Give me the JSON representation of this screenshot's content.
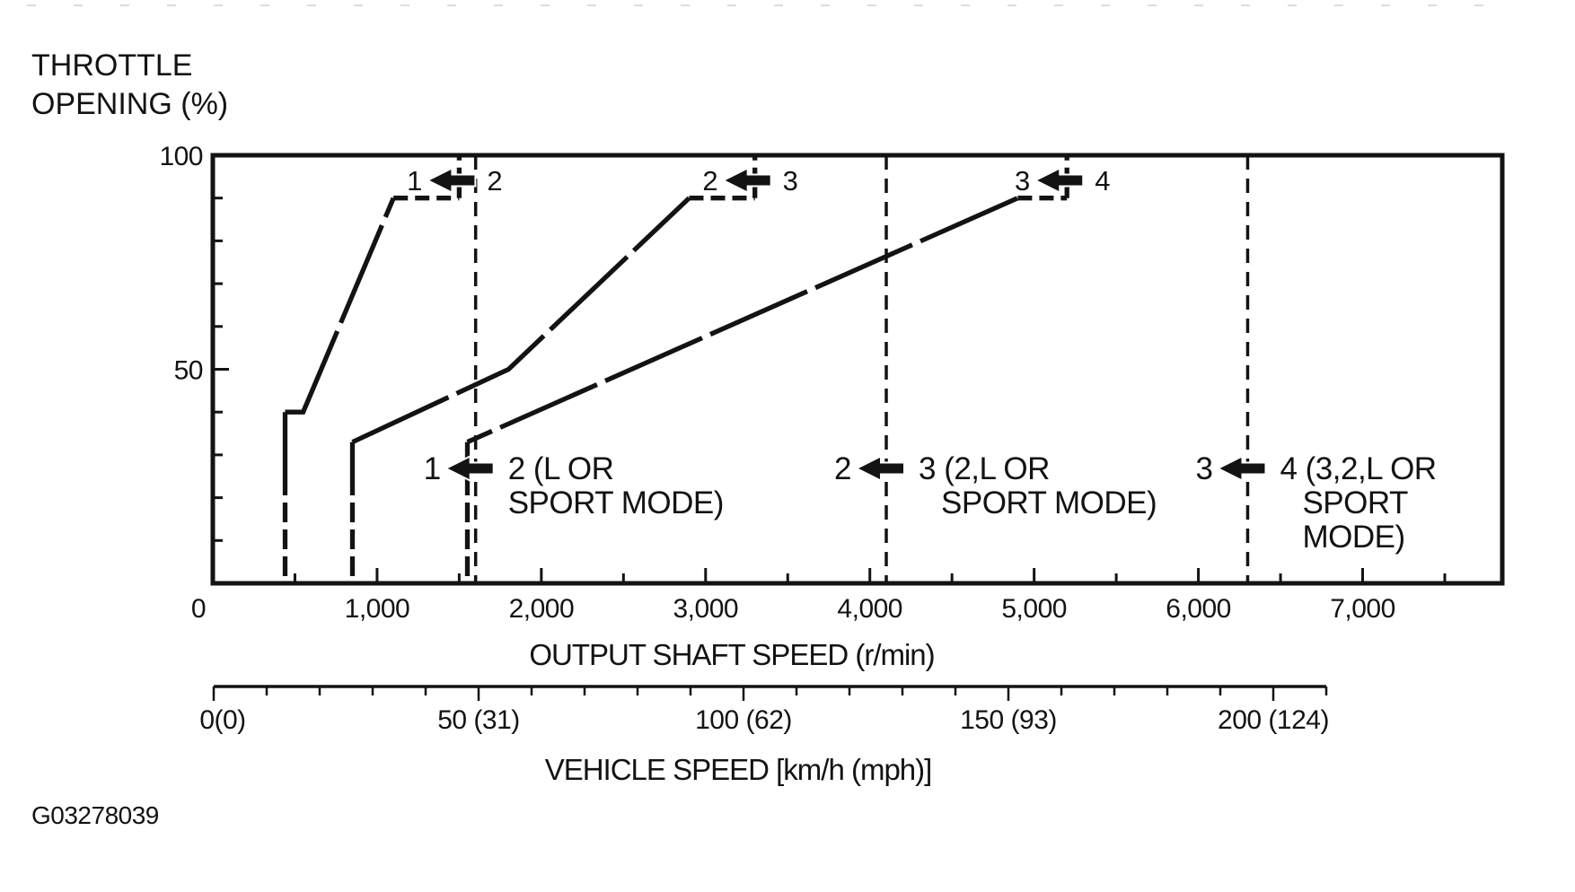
{
  "figure_id": "G03278039",
  "chart_data": {
    "type": "line",
    "title": "",
    "ylabel": "THROTTLE OPENING (%)",
    "xlabel": "OUTPUT SHAFT SPEED (r/min)",
    "x2label": "VEHICLE SPEED [km/h (mph)]",
    "x_axis": {
      "min": 0,
      "max": 7850,
      "minor_step": 500,
      "major_step": 1000,
      "tick_labels": [
        {
          "v": 0,
          "t": "0"
        },
        {
          "v": 1000,
          "t": "1,000"
        },
        {
          "v": 2000,
          "t": "2,000"
        },
        {
          "v": 3000,
          "t": "3,000"
        },
        {
          "v": 4000,
          "t": "4,000"
        },
        {
          "v": 5000,
          "t": "5,000"
        },
        {
          "v": 6000,
          "t": "6,000"
        },
        {
          "v": 7000,
          "t": "7,000"
        }
      ]
    },
    "y_axis": {
      "min": 0,
      "max": 100,
      "minor_step": 10,
      "tick_labels": [
        {
          "v": 100,
          "t": "100"
        },
        {
          "v": 50,
          "t": "50"
        }
      ]
    },
    "x2_axis": {
      "min": 0,
      "max": 210,
      "minor_step": 10,
      "major_step": 50,
      "tick_labels": [
        {
          "v": 0,
          "t": "0(0)"
        },
        {
          "v": 50,
          "t": "50 (31)"
        },
        {
          "v": 100,
          "t": "100 (62)"
        },
        {
          "v": 150,
          "t": "150 (93)"
        },
        {
          "v": 200,
          "t": "200 (124)"
        }
      ]
    },
    "series": [
      {
        "name": "downshift-2-to-1",
        "points": [
          [
            440,
            0
          ],
          [
            440,
            40
          ],
          [
            550,
            40
          ],
          [
            1100,
            90
          ],
          [
            1500,
            90
          ],
          [
            1500,
            100
          ]
        ]
      },
      {
        "name": "downshift-3-to-2",
        "points": [
          [
            850,
            0
          ],
          [
            850,
            33
          ],
          [
            1800,
            50
          ],
          [
            2900,
            90
          ],
          [
            3300,
            90
          ],
          [
            3300,
            100
          ]
        ]
      },
      {
        "name": "downshift-4-to-3",
        "points": [
          [
            1550,
            0
          ],
          [
            1550,
            33
          ],
          [
            4900,
            90
          ],
          [
            5200,
            90
          ],
          [
            5200,
            100
          ]
        ]
      }
    ],
    "top_arrows": [
      {
        "x": 1500,
        "left": "1",
        "right": "2"
      },
      {
        "x": 3300,
        "left": "2",
        "right": "3"
      },
      {
        "x": 5200,
        "left": "3",
        "right": "4"
      }
    ],
    "mode_lines": [
      {
        "x": 1600,
        "left": "1",
        "label_lines": [
          "2 (L OR",
          "SPORT MODE)"
        ],
        "indent": [
          0,
          0
        ]
      },
      {
        "x": 4100,
        "left": "2",
        "label_lines": [
          "3 (2,L OR",
          "SPORT MODE)"
        ],
        "indent": [
          0,
          25
        ]
      },
      {
        "x": 6300,
        "left": "3",
        "label_lines": [
          "4 (3,2,L OR",
          "SPORT",
          "MODE)"
        ],
        "indent": [
          0,
          25,
          25
        ]
      }
    ]
  }
}
